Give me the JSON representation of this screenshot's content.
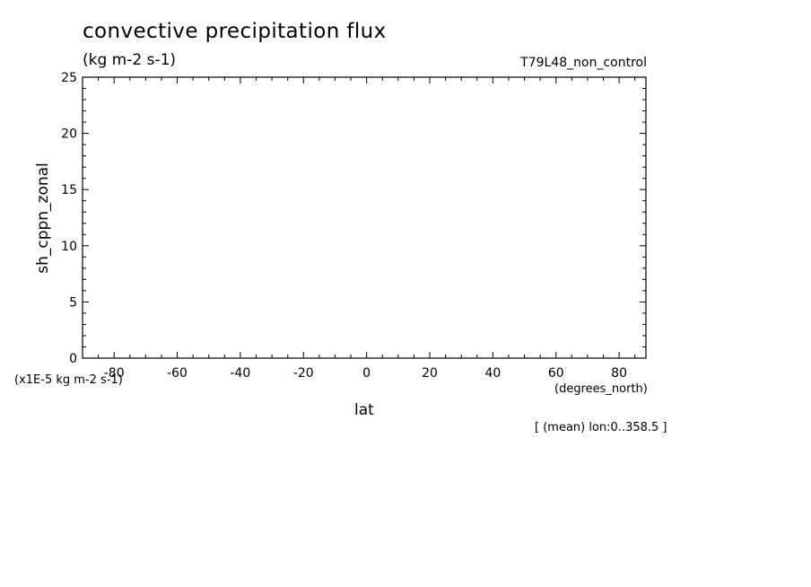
{
  "figure": {
    "title": "convective precipitation flux",
    "subtitle": "(kg m-2 s-1)",
    "run_label": "T79L48_non_control",
    "scale_label": "(x1E-5 kg m-2 s-1)",
    "x_units": "(degrees_north)",
    "note": "[ (mean) lon:0..358.5 ]"
  },
  "chart_data": {
    "type": "line",
    "title": "convective precipitation flux",
    "subtitle": "(kg m-2 s-1)",
    "xlabel": "lat",
    "ylabel": "sh_cppn_zonal",
    "x_units": "(degrees_north)",
    "y_scale_note": "(x1E-5 kg m-2 s-1)",
    "xlim": [
      -90,
      88.5
    ],
    "ylim": [
      0,
      25
    ],
    "x_ticks": [
      -80,
      -60,
      -40,
      -20,
      0,
      20,
      40,
      60,
      80
    ],
    "x_tick_labels": [
      "-80",
      "-60",
      "-40",
      "-20",
      "0",
      "20",
      "40",
      "60",
      "80"
    ],
    "y_ticks": [
      0,
      5,
      10,
      15,
      20,
      25
    ],
    "y_tick_labels": [
      "0",
      "5",
      "10",
      "15",
      "20",
      "25"
    ],
    "series": [],
    "grid": false
  }
}
